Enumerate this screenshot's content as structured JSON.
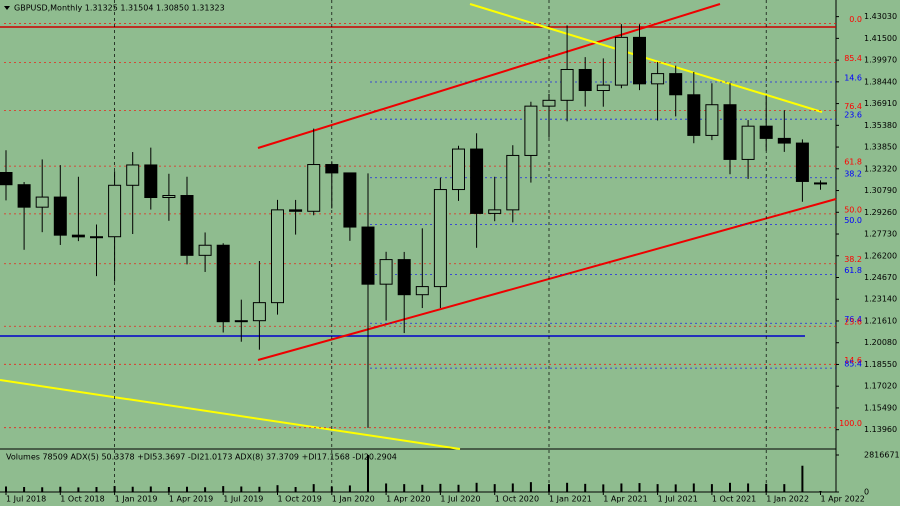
{
  "chart_data": {
    "type": "candlestick",
    "title": "GBPUSD,Monthly  1.31325 1.31504 1.30850 1.31323",
    "categories": [
      "1 Jul 2018",
      null,
      null,
      "1 Oct 2018",
      null,
      null,
      "1 Jan 2019",
      null,
      null,
      "1 Apr 2019",
      null,
      null,
      "1 Jul 2019",
      null,
      null,
      "1 Oct 2019",
      null,
      null,
      "1 Jan 2020",
      null,
      null,
      "1 Apr 2020",
      null,
      null,
      "1 Jul 2020",
      null,
      null,
      "1 Oct 2020",
      null,
      null,
      "1 Jan 2021",
      null,
      null,
      "1 Apr 2021",
      null,
      null,
      "1 Jul 2021",
      null,
      null,
      "1 Oct 2021",
      null,
      null,
      "1 Jan 2022",
      null,
      null,
      "1 Apr 2022"
    ],
    "open": [
      1.3206,
      1.312,
      1.2962,
      1.3033,
      1.2765,
      1.2753,
      1.2754,
      1.3116,
      1.3259,
      1.303,
      1.3044,
      1.2623,
      1.2694,
      1.2156,
      1.2163,
      1.229,
      1.2943,
      1.2933,
      1.3262,
      1.3203,
      1.2822,
      1.242,
      1.2593,
      1.2346,
      1.2403,
      1.3086,
      1.3371,
      1.2918,
      1.2943,
      1.3326,
      1.3673,
      1.3714,
      1.3931,
      1.3783,
      1.3821,
      1.4157,
      1.383,
      1.3902,
      1.3753,
      1.3467,
      1.3683,
      1.3298,
      1.3532,
      1.3446,
      1.3413,
      1.31325
    ],
    "high": [
      1.3363,
      1.3139,
      1.3298,
      1.3258,
      1.3176,
      1.284,
      1.3215,
      1.335,
      1.3381,
      1.3197,
      1.3176,
      1.2784,
      1.2708,
      1.2311,
      1.2583,
      1.3013,
      1.3013,
      1.3515,
      1.3285,
      1.3201,
      1.32,
      1.2648,
      1.2647,
      1.2813,
      1.317,
      1.3394,
      1.3482,
      1.3176,
      1.3398,
      1.3704,
      1.3759,
      1.4241,
      1.4018,
      1.4009,
      1.425,
      1.4249,
      1.3984,
      1.3958,
      1.3913,
      1.3834,
      1.3834,
      1.3575,
      1.3748,
      1.3644,
      1.3439,
      1.31504
    ],
    "low": [
      1.301,
      1.2662,
      1.2786,
      1.2696,
      1.2723,
      1.2477,
      1.2438,
      1.2773,
      1.2945,
      1.2866,
      1.2559,
      1.2506,
      1.208,
      1.2015,
      1.1959,
      1.2206,
      1.2769,
      1.2905,
      1.2953,
      1.2725,
      1.1409,
      1.2164,
      1.2076,
      1.2252,
      1.2252,
      1.3006,
      1.2676,
      1.2863,
      1.2855,
      1.3135,
      1.3451,
      1.3566,
      1.367,
      1.3669,
      1.3799,
      1.3786,
      1.3572,
      1.3601,
      1.3412,
      1.3434,
      1.3194,
      1.3161,
      1.3359,
      1.3351,
      1.3,
      1.3085
    ],
    "close": [
      1.312,
      1.2962,
      1.3033,
      1.2765,
      1.2753,
      1.2754,
      1.3116,
      1.3259,
      1.303,
      1.3044,
      1.2623,
      1.2694,
      1.2156,
      1.2163,
      1.229,
      1.2943,
      1.2933,
      1.3262,
      1.3203,
      1.2822,
      1.242,
      1.2593,
      1.2346,
      1.2403,
      1.3086,
      1.3371,
      1.2918,
      1.2943,
      1.3326,
      1.3673,
      1.3714,
      1.3931,
      1.3783,
      1.3821,
      1.4157,
      1.383,
      1.3902,
      1.3753,
      1.3467,
      1.3683,
      1.3298,
      1.3532,
      1.3446,
      1.3413,
      1.3143,
      1.31323
    ],
    "up_color": "#8fbc8f",
    "down_color": "#000000",
    "ylim": [
      1.126,
      1.442
    ],
    "yticks": [
      {
        "value": 1.4303,
        "label": "1.43030"
      },
      {
        "value": 1.415,
        "label": "1.41500"
      },
      {
        "value": 1.3997,
        "label": "1.39970"
      },
      {
        "value": 1.3844,
        "label": "1.38440"
      },
      {
        "value": 1.3691,
        "label": "1.36910"
      },
      {
        "value": 1.3538,
        "label": "1.35380"
      },
      {
        "value": 1.3385,
        "label": "1.33850"
      },
      {
        "value": 1.3232,
        "label": "1.32320"
      },
      {
        "value": 1.3079,
        "label": "1.30790"
      },
      {
        "value": 1.2926,
        "label": "1.29260"
      },
      {
        "value": 1.2773,
        "label": "1.27730"
      },
      {
        "value": 1.262,
        "label": "1.26200"
      },
      {
        "value": 1.2467,
        "label": "1.24670"
      },
      {
        "value": 1.2314,
        "label": "1.23140"
      },
      {
        "value": 1.2161,
        "label": "1.21610"
      },
      {
        "value": 1.2008,
        "label": "1.20080"
      },
      {
        "value": 1.1855,
        "label": "1.18550"
      },
      {
        "value": 1.1702,
        "label": "1.17020"
      },
      {
        "value": 1.1549,
        "label": "1.15490"
      },
      {
        "value": 1.1396,
        "label": "1.13960"
      }
    ],
    "fib_levels": [
      {
        "label": "0.0",
        "price": 1.4255,
        "color": "#ff0000"
      },
      {
        "label": "85.4",
        "price": 1.398,
        "color": "#ff0000"
      },
      {
        "label": "14.6",
        "price": 1.3843,
        "color": "#0000ff"
      },
      {
        "label": "76.4",
        "price": 1.3643,
        "color": "#ff0000"
      },
      {
        "label": "23.6",
        "price": 1.3581,
        "color": "#0000ff"
      },
      {
        "label": "61.8",
        "price": 1.3251,
        "color": "#ff0000"
      },
      {
        "label": "38.2",
        "price": 1.3169,
        "color": "#0000ff"
      },
      {
        "label": "50.0",
        "price": 1.2915,
        "color": "#ff0000"
      },
      {
        "label": "50.0",
        "price": 1.2839,
        "color": "#0000ff"
      },
      {
        "label": "38.2",
        "price": 1.2564,
        "color": "#ff0000"
      },
      {
        "label": "61.8",
        "price": 1.2489,
        "color": "#0000ff"
      },
      {
        "label": "76.4",
        "price": 1.2145,
        "color": "#0000ff"
      },
      {
        "label": "23.6",
        "price": 1.2124,
        "color": "#ff0000"
      },
      {
        "label": "14.6",
        "price": 1.1856,
        "color": "#ff0000"
      },
      {
        "label": "85.4",
        "price": 1.1829,
        "color": "#0000ff"
      },
      {
        "label": "100.0",
        "price": 1.141,
        "color": "#ff0000"
      }
    ],
    "indicator_label": "Volumes 78509  ADX(5) 50.3378 +DI53.3697 -DI21.0173  ADX(8) 37.3709 +DI17.1568 -DI20.2904",
    "volumes": [
      420000,
      380000,
      360000,
      400000,
      350000,
      380000,
      450000,
      400000,
      420000,
      380000,
      400000,
      360000,
      450000,
      420000,
      400000,
      520000,
      380000,
      600000,
      420000,
      500000,
      2816671,
      650000,
      600000,
      550000,
      620000,
      550000,
      700000,
      600000,
      650000,
      750000,
      600000,
      700000,
      620000,
      580000,
      650000,
      680000,
      600000,
      580000,
      650000,
      600000,
      700000,
      650000,
      620000,
      600000,
      2000000,
      78509
    ],
    "volume_color": "#000000",
    "vlim": [
      0,
      2816671
    ],
    "vticks": [
      2816671,
      0
    ]
  }
}
